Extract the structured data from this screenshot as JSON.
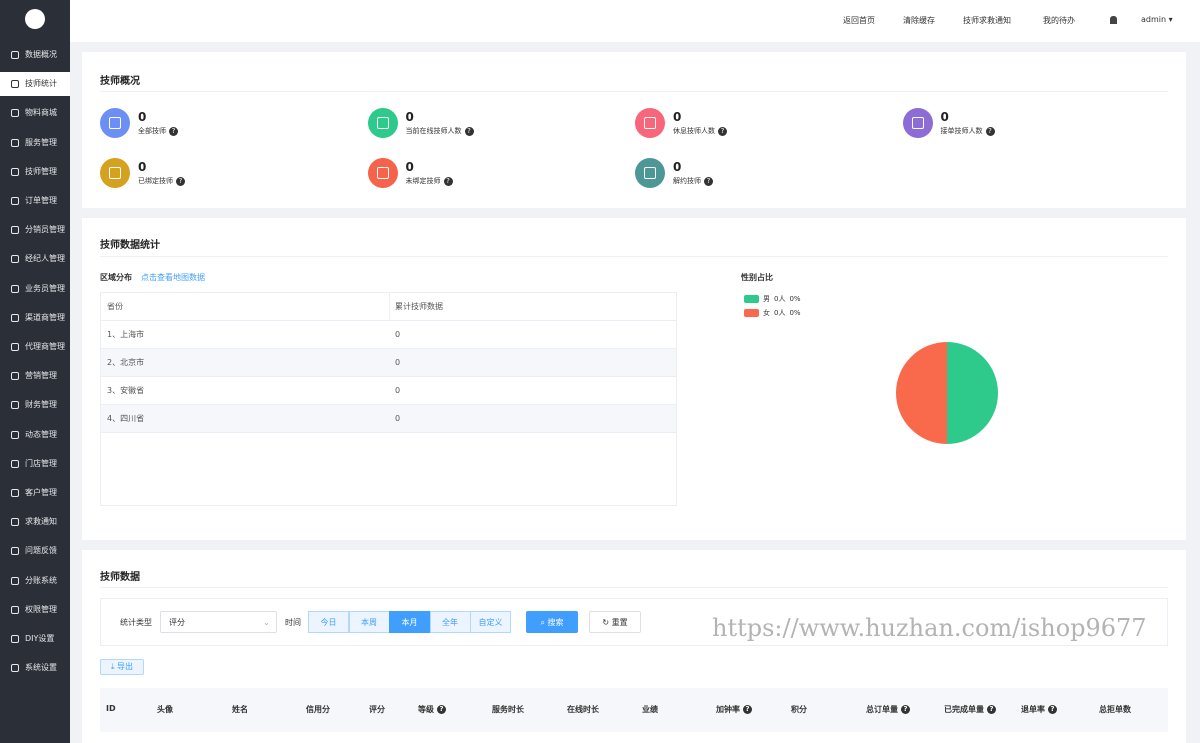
{
  "sidebar": {
    "active": 1,
    "items": [
      "数据概况",
      "技师统计",
      "物料商城",
      "服务管理",
      "技师管理",
      "订单管理",
      "分销员管理",
      "经纪人管理",
      "业务员管理",
      "渠道商管理",
      "代理商管理",
      "营销管理",
      "财务管理",
      "动态管理",
      "门店管理",
      "客户管理",
      "求救通知",
      "问题反馈",
      "分账系统",
      "权限管理",
      "DIY设置",
      "系统设置"
    ]
  },
  "topbar": {
    "links": [
      "返回首页",
      "清除缓存",
      "技师求救通知",
      "我的待办"
    ],
    "user": "admin"
  },
  "overview": {
    "title": "技师概况",
    "stats": [
      {
        "value": "0",
        "label": "全部技师",
        "color": "#6b8ff5"
      },
      {
        "value": "0",
        "label": "当前在线技师人数",
        "color": "#2dca8c"
      },
      {
        "value": "0",
        "label": "休息技师人数",
        "color": "#f7667a"
      },
      {
        "value": "0",
        "label": "接单技师人数",
        "color": "#8d6cd6"
      },
      {
        "value": "0",
        "label": "已绑定技师",
        "color": "#d6a11f"
      },
      {
        "value": "0",
        "label": "未绑定技师",
        "color": "#f5634a"
      },
      {
        "value": "0",
        "label": "解约技师",
        "color": "#4d9797"
      }
    ]
  },
  "statistics": {
    "title": "技师数据统计",
    "region": {
      "title": "区域分布",
      "link": "点击查看地图数据",
      "columns": [
        "省份",
        "累计技师数据"
      ],
      "rows": [
        [
          "1、上海市",
          "0"
        ],
        [
          "2、北京市",
          "0"
        ],
        [
          "3、安徽省",
          "0"
        ],
        [
          "4、四川省",
          "0"
        ]
      ]
    },
    "gender": {
      "title": "性别占比",
      "items": [
        {
          "name": "男",
          "count": "0人",
          "percent": "0%",
          "color": "#2dca8c"
        },
        {
          "name": "女",
          "count": "0人",
          "percent": "0%",
          "color": "#f9694b"
        }
      ]
    }
  },
  "data_table": {
    "title": "技师数据",
    "filter": {
      "type_label": "统计类型",
      "type_value": "评分",
      "time_label": "时间",
      "periods": [
        "今日",
        "本周",
        "本月",
        "全年",
        "自定义"
      ],
      "active_period": 2,
      "search": "搜索",
      "reset": "重置"
    },
    "export": "导出",
    "columns": [
      {
        "label": "ID",
        "help": false
      },
      {
        "label": "头像",
        "help": false
      },
      {
        "label": "姓名",
        "help": false
      },
      {
        "label": "信用分",
        "help": false
      },
      {
        "label": "评分",
        "help": false
      },
      {
        "label": "等级",
        "help": true
      },
      {
        "label": "服务时长",
        "help": false
      },
      {
        "label": "在线时长",
        "help": false
      },
      {
        "label": "业绩",
        "help": false
      },
      {
        "label": "加钟率",
        "help": true
      },
      {
        "label": "积分",
        "help": false
      },
      {
        "label": "总订单量",
        "help": true
      },
      {
        "label": "已完成单量",
        "help": true
      },
      {
        "label": "退单率",
        "help": true
      },
      {
        "label": "总拒单数",
        "help": false
      }
    ]
  },
  "watermark": "https://www.huzhan.com/ishop9677"
}
